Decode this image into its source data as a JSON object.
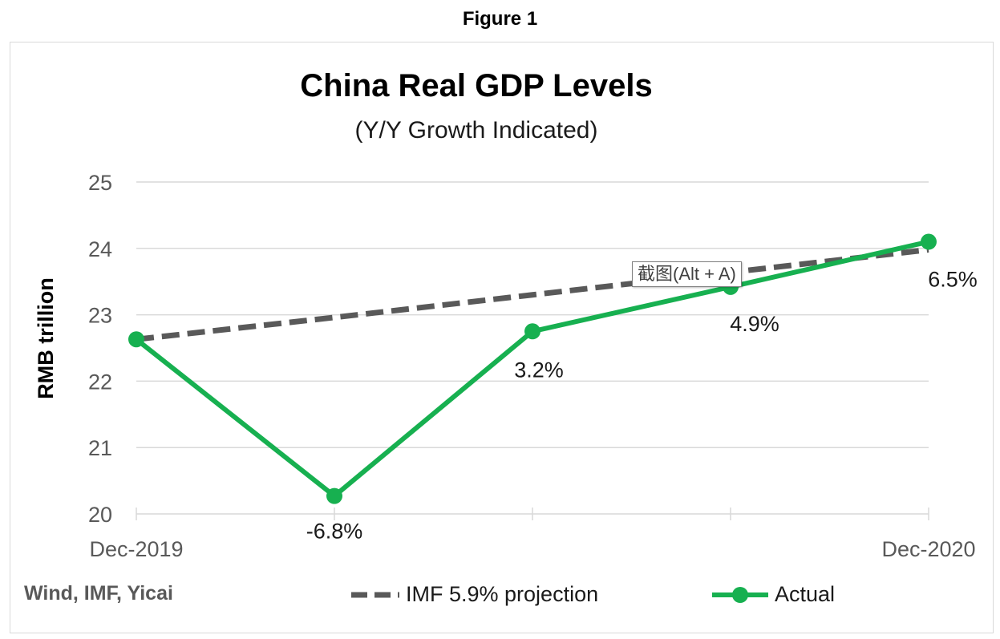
{
  "figure_label": "Figure 1",
  "source": "Wind, IMF, Yicai",
  "tooltip": "截图(Alt + A)",
  "colors": {
    "projection": "#595959",
    "actual": "#17b050",
    "grid": "#d9d9d9",
    "axis_text": "#595959"
  },
  "chart_data": {
    "type": "line",
    "title": "China Real GDP Levels",
    "subtitle": "(Y/Y Growth Indicated)",
    "ylabel": "RMB trillion",
    "xlabel": "",
    "ylim": [
      20,
      25
    ],
    "yticks": [
      20,
      21,
      22,
      23,
      24,
      25
    ],
    "x": [
      0,
      1,
      2,
      3,
      4
    ],
    "xtick_labels": [
      "Dec-2019",
      "",
      "",
      "",
      "Dec-2020"
    ],
    "grid": true,
    "legend_position": "bottom",
    "series": [
      {
        "name": "IMF 5.9% projection",
        "style": "dashed",
        "color": "#595959",
        "values": [
          22.63,
          22.96,
          23.3,
          23.64,
          23.98
        ]
      },
      {
        "name": "Actual",
        "style": "solid-markers",
        "color": "#17b050",
        "values": [
          22.63,
          20.27,
          22.75,
          23.42,
          24.1
        ],
        "data_labels": [
          "",
          "-6.8%",
          "3.2%",
          "4.9%",
          "6.5%"
        ]
      }
    ]
  }
}
